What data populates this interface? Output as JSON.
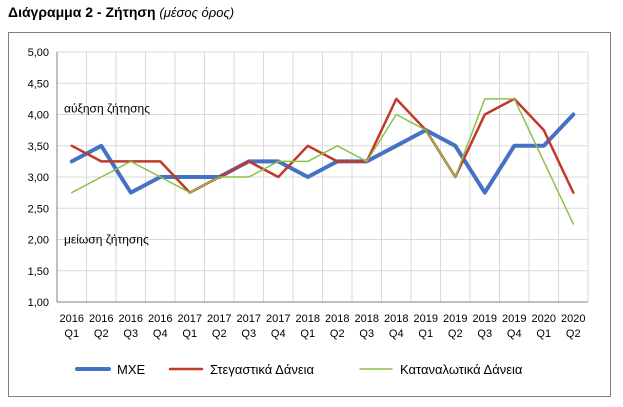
{
  "title": "Διάγραμμα 2 - Ζήτηση",
  "subtitle": "(μέσος όρος)",
  "chart_data": {
    "type": "line",
    "x_year": [
      "2016",
      "2016",
      "2016",
      "2016",
      "2017",
      "2017",
      "2017",
      "2017",
      "2018",
      "2018",
      "2018",
      "2018",
      "2019",
      "2019",
      "2019",
      "2019",
      "2020",
      "2020"
    ],
    "x_quarter": [
      "Q1",
      "Q2",
      "Q3",
      "Q4",
      "Q1",
      "Q2",
      "Q3",
      "Q4",
      "Q1",
      "Q2",
      "Q3",
      "Q4",
      "Q1",
      "Q2",
      "Q3",
      "Q4",
      "Q1",
      "Q2"
    ],
    "ylim": [
      1.0,
      5.0
    ],
    "yticks": [
      "1,00",
      "1,50",
      "2,00",
      "2,50",
      "3,00",
      "3,50",
      "4,00",
      "4,50",
      "5,00"
    ],
    "grid": true,
    "legend_position": "bottom",
    "annotations": {
      "upper": "αύξηση ζήτησης",
      "lower": "μείωση ζήτησης"
    },
    "series": [
      {
        "name": "ΜΧΕ",
        "color": "#4472c4",
        "width": 4,
        "values": [
          3.25,
          3.5,
          2.75,
          3.0,
          3.0,
          3.0,
          3.25,
          3.25,
          3.0,
          3.25,
          3.25,
          3.5,
          3.75,
          3.5,
          2.75,
          3.5,
          3.5,
          4.0
        ]
      },
      {
        "name": "Στεγαστικά Δάνεια",
        "color": "#c0392b",
        "width": 2.5,
        "values": [
          3.5,
          3.25,
          3.25,
          3.25,
          2.75,
          3.0,
          3.25,
          3.0,
          3.5,
          3.25,
          3.25,
          4.25,
          3.75,
          3.0,
          4.0,
          4.25,
          3.75,
          2.75
        ]
      },
      {
        "name": "Καταναλωτικά Δάνεια",
        "color": "#8dc14a",
        "width": 1.5,
        "values": [
          2.75,
          3.0,
          3.25,
          3.0,
          2.75,
          3.0,
          3.0,
          3.25,
          3.25,
          3.5,
          3.25,
          4.0,
          3.75,
          3.0,
          4.25,
          4.25,
          3.25,
          2.25
        ]
      }
    ]
  }
}
